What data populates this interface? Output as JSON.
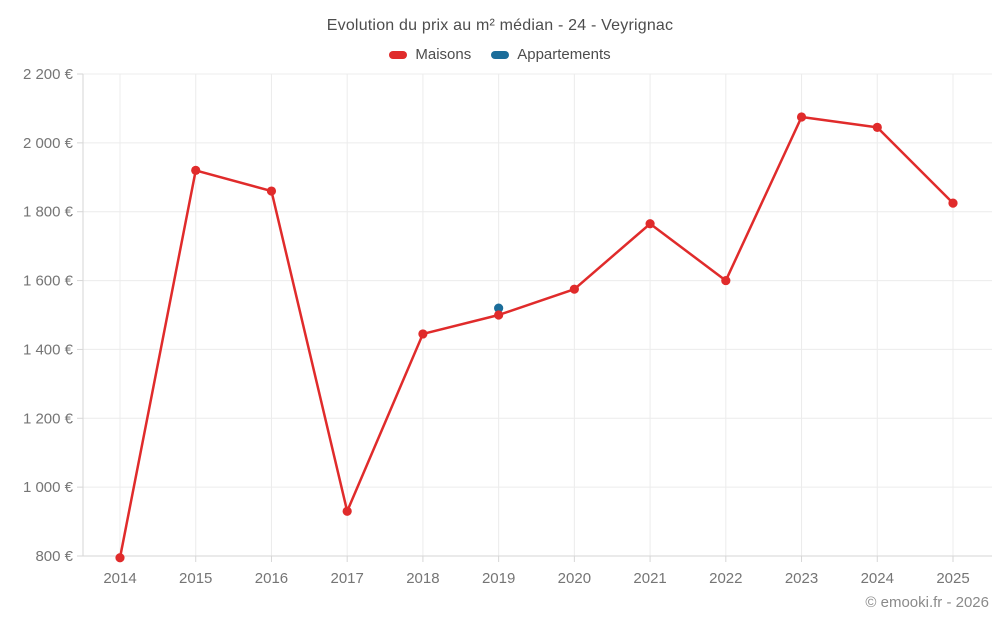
{
  "title": "Evolution du prix au m² médian - 24 - Veyrignac",
  "footer": "© emooki.fr - 2026",
  "legend": {
    "maisons": {
      "label": "Maisons",
      "color": "#e02b2b"
    },
    "appartements": {
      "label": "Appartements",
      "color": "#1b6d9a"
    }
  },
  "chart_data": {
    "type": "line",
    "title": "Evolution du prix au m² médian - 24 - Veyrignac",
    "x": [
      2014,
      2015,
      2016,
      2017,
      2018,
      2019,
      2020,
      2021,
      2022,
      2023,
      2024,
      2025
    ],
    "x_tick_labels": [
      "2014",
      "2015",
      "2016",
      "2017",
      "2018",
      "2019",
      "2020",
      "2021",
      "2022",
      "2023",
      "2024",
      "2025"
    ],
    "series": [
      {
        "name": "Maisons",
        "color": "#e02b2b",
        "style": "line-with-points",
        "values": [
          795,
          1920,
          1860,
          930,
          1445,
          1500,
          1575,
          1765,
          1600,
          2075,
          2045,
          1825
        ]
      },
      {
        "name": "Appartements",
        "color": "#1b6d9a",
        "style": "points-only",
        "values": [
          null,
          null,
          null,
          null,
          null,
          1520,
          null,
          null,
          null,
          null,
          null,
          null
        ]
      }
    ],
    "ylim": [
      800,
      2200
    ],
    "y_ticks": [
      800,
      1000,
      1200,
      1400,
      1600,
      1800,
      2000,
      2200
    ],
    "y_tick_labels": [
      "800 €",
      "1 000 €",
      "1 200 €",
      "1 400 €",
      "1 600 €",
      "1 800 €",
      "2 000 €",
      "2 200 €"
    ],
    "xlabel": "",
    "ylabel": "",
    "grid": true,
    "legend_position": "top"
  },
  "style": {
    "grid_color": "#ececec",
    "axis_color": "#d6d6d6",
    "tick_text_color": "#757575",
    "title_color": "#4d4d4d"
  }
}
